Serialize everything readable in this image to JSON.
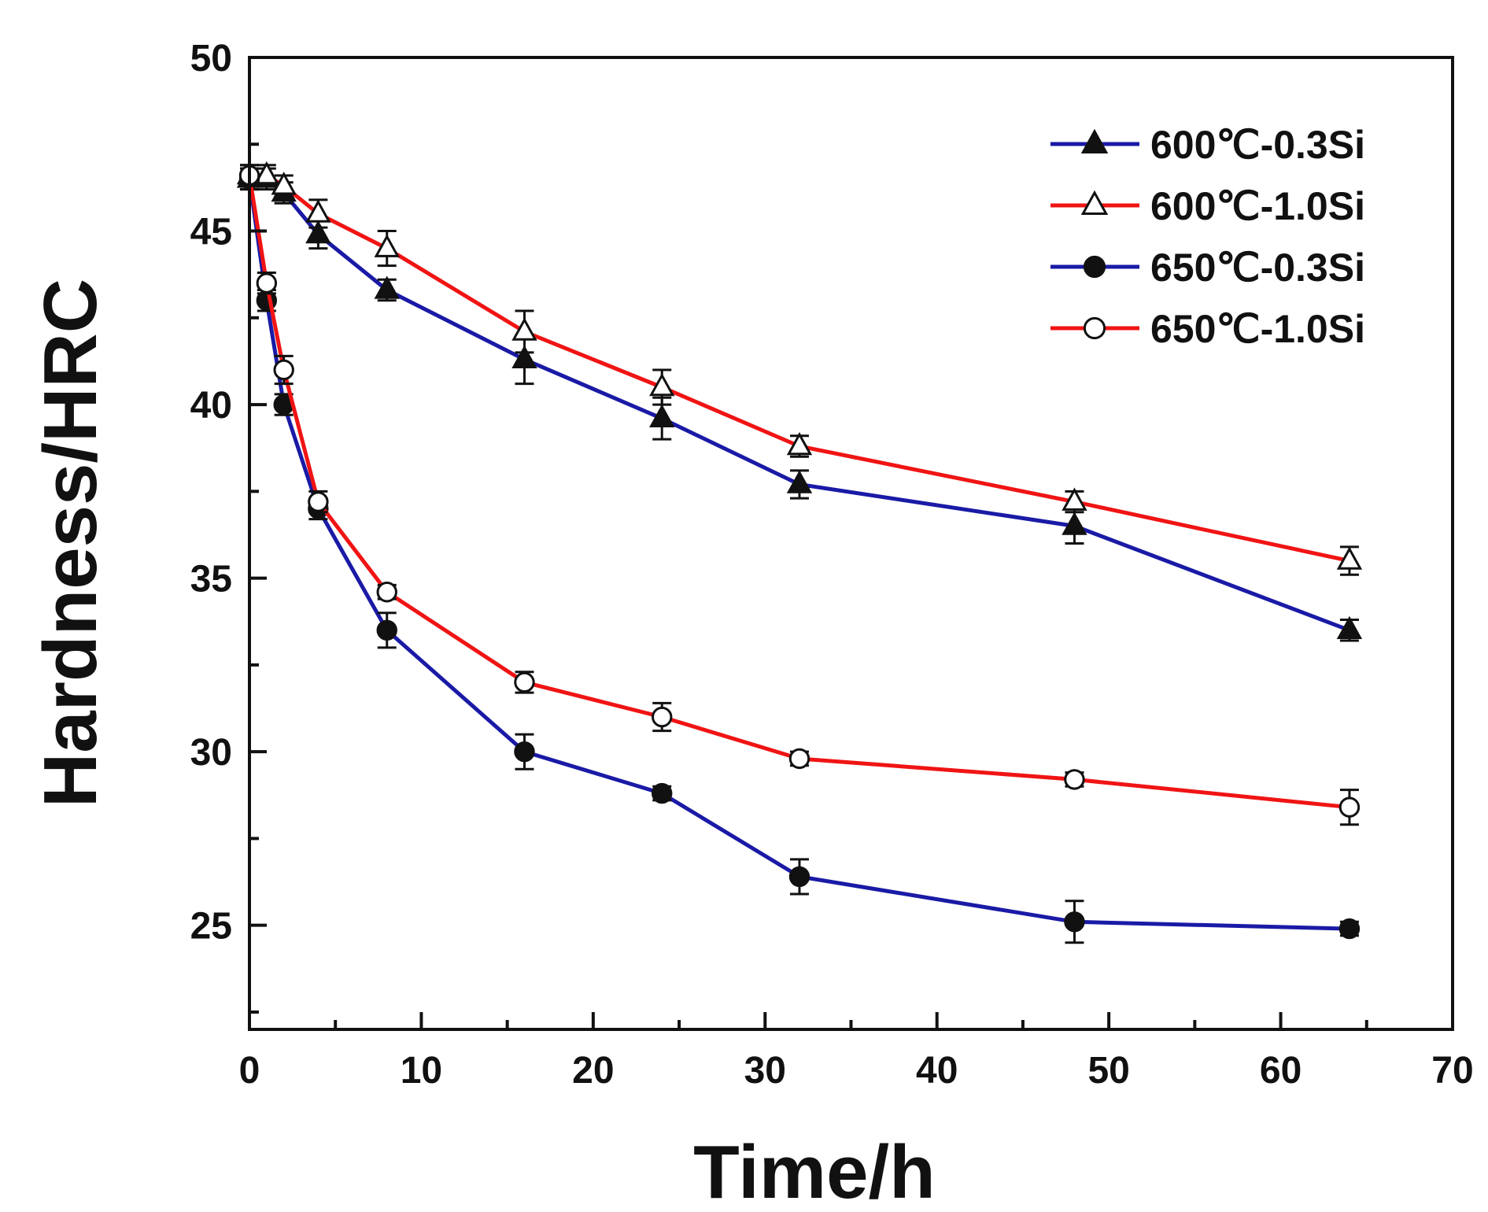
{
  "chart_data": {
    "type": "line",
    "title": "",
    "xlabel": "Time/h",
    "ylabel": "Hardness/HRC",
    "xlim": [
      0,
      70
    ],
    "ylim": [
      22,
      50
    ],
    "xticks": [
      0,
      10,
      20,
      30,
      40,
      50,
      60,
      70
    ],
    "yticks": [
      25,
      30,
      35,
      40,
      45,
      50
    ],
    "grid": false,
    "legend_position": "top-right",
    "series": [
      {
        "name": "600℃-0.3Si",
        "color": "#1a1aa6",
        "marker": "filled-triangle",
        "x": [
          0,
          1,
          2,
          4,
          8,
          16,
          24,
          32,
          48,
          64
        ],
        "y": [
          46.5,
          46.5,
          46.1,
          44.9,
          43.3,
          41.3,
          39.6,
          37.7,
          36.5,
          33.5
        ],
        "err": [
          0.3,
          0.3,
          0.3,
          0.4,
          0.3,
          0.7,
          0.6,
          0.4,
          0.5,
          0.3
        ]
      },
      {
        "name": "600℃-1.0Si",
        "color": "#f01414",
        "marker": "open-triangle",
        "x": [
          0,
          1,
          2,
          4,
          8,
          16,
          24,
          32,
          48,
          64
        ],
        "y": [
          46.6,
          46.6,
          46.3,
          45.5,
          44.5,
          42.1,
          40.5,
          38.8,
          37.2,
          35.5
        ],
        "err": [
          0.3,
          0.3,
          0.3,
          0.4,
          0.5,
          0.6,
          0.5,
          0.3,
          0.3,
          0.4
        ]
      },
      {
        "name": "650℃-0.3Si",
        "color": "#1a1aa6",
        "marker": "filled-circle",
        "x": [
          0,
          1,
          2,
          4,
          8,
          16,
          24,
          32,
          48,
          64
        ],
        "y": [
          46.5,
          43.0,
          40.0,
          37.0,
          33.5,
          30.0,
          28.8,
          26.4,
          25.1,
          24.9
        ],
        "err": [
          0.3,
          0.3,
          0.3,
          0.3,
          0.5,
          0.5,
          0.2,
          0.5,
          0.6,
          0.2
        ]
      },
      {
        "name": "650℃-1.0Si",
        "color": "#f01414",
        "marker": "open-circle",
        "x": [
          0,
          1,
          2,
          4,
          8,
          16,
          24,
          32,
          48,
          64
        ],
        "y": [
          46.6,
          43.5,
          41.0,
          37.2,
          34.6,
          32.0,
          31.0,
          29.8,
          29.2,
          28.4
        ],
        "err": [
          0.3,
          0.3,
          0.4,
          0.3,
          0.2,
          0.3,
          0.4,
          0.2,
          0.2,
          0.5
        ]
      }
    ]
  }
}
